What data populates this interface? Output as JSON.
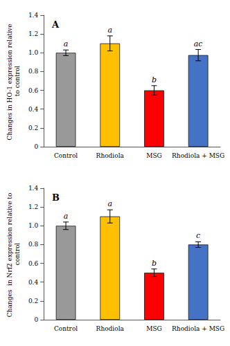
{
  "chart_data": [
    {
      "type": "bar",
      "title": "A",
      "ylabel": "Changes in HO-1 expression relative \nto control",
      "categories": [
        "Control",
        "Rhodiola",
        "MSG",
        "Rhodiola + MSG"
      ],
      "values": [
        1.0,
        1.1,
        0.6,
        0.975
      ],
      "errors": [
        0.03,
        0.08,
        0.05,
        0.06
      ],
      "annotations": [
        "a",
        "a",
        "b",
        "ac"
      ],
      "colors": [
        "#999999",
        "#FFC000",
        "#FF0000",
        "#4472C4"
      ],
      "ylim": [
        0,
        1.4
      ],
      "yticks": [
        0,
        0.2,
        0.4,
        0.6,
        0.8,
        {
          "value": 1.0,
          "label": "1.0"
        },
        1.2,
        1.4
      ],
      "grid": false
    },
    {
      "type": "bar",
      "title": "B",
      "ylabel": "Changes  in Nrf2 expression relative to \ncontrol",
      "categories": [
        "Control",
        "Rhodiola",
        "MSG",
        "Rhodiola + MSG"
      ],
      "values": [
        1.0,
        1.1,
        0.5,
        0.8
      ],
      "errors": [
        0.04,
        0.07,
        0.04,
        0.03
      ],
      "annotations": [
        "a",
        "a",
        "b",
        "c"
      ],
      "colors": [
        "#999999",
        "#FFC000",
        "#FF0000",
        "#4472C4"
      ],
      "ylim": [
        0,
        1.4
      ],
      "yticks": [
        0,
        0.2,
        0.4,
        0.6,
        0.8,
        {
          "value": 1.0,
          "label": "1.0"
        },
        1.2,
        1.4
      ],
      "grid": false
    }
  ]
}
